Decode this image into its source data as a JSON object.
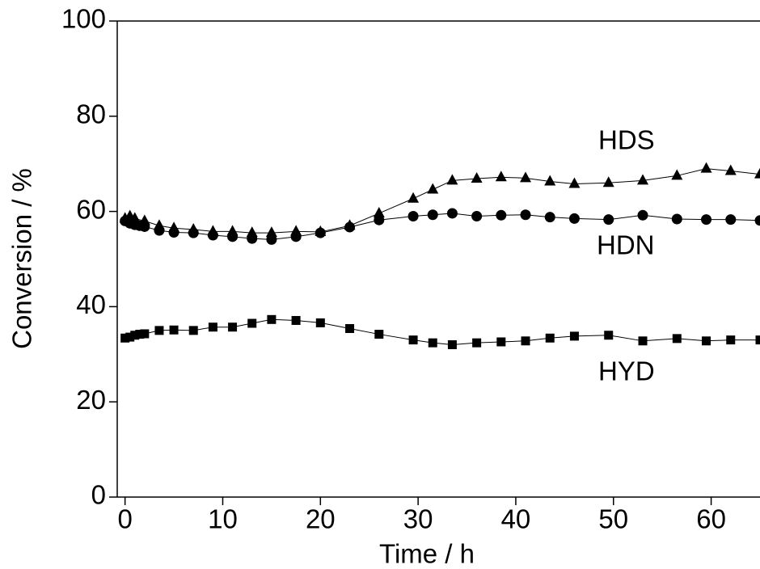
{
  "chart_data": {
    "type": "line",
    "x_label": "Time / h",
    "y_label": "Conversion / %",
    "xlim": [
      -0.8,
      65
    ],
    "xticks": [
      0,
      10,
      20,
      30,
      40,
      50,
      60
    ],
    "ylim": [
      0,
      100
    ],
    "yticks": [
      0,
      20,
      40,
      60,
      80,
      100
    ],
    "series": [
      {
        "name": "HDS",
        "color": "#000000",
        "marker": "triangle",
        "x": [
          0,
          0.5,
          1,
          2,
          3.5,
          5,
          7,
          9,
          11,
          13,
          15,
          17.5,
          20,
          23,
          26,
          29.5,
          31.5,
          33.5,
          36,
          38.5,
          41,
          43.5,
          46,
          49.5,
          53,
          56.5,
          59.5,
          62,
          65
        ],
        "values": [
          58.5,
          59,
          58.5,
          58,
          57,
          56.5,
          56.2,
          55.8,
          55.8,
          55.5,
          55.5,
          55.8,
          55.7,
          57,
          59.6,
          62.7,
          64.6,
          66.5,
          66.9,
          67.2,
          67,
          66.3,
          65.8,
          66,
          66.5,
          67.5,
          69,
          68.5,
          67.8
        ]
      },
      {
        "name": "HDN",
        "color": "#000000",
        "marker": "circle",
        "x": [
          0,
          0.5,
          1,
          1.5,
          2,
          3.5,
          5,
          7,
          9,
          11,
          13,
          15,
          17.5,
          20,
          23,
          26,
          29.5,
          31.5,
          33.5,
          36,
          38.5,
          41,
          43.5,
          46,
          49.5,
          53,
          56.5,
          59.5,
          62,
          65
        ],
        "values": [
          58,
          57.5,
          57.2,
          57,
          56.8,
          56,
          55.6,
          55.5,
          55,
          54.7,
          54.3,
          54.1,
          54.7,
          55.5,
          56.7,
          58.2,
          59,
          59.3,
          59.6,
          59,
          59.2,
          59.3,
          58.8,
          58.5,
          58.3,
          59.2,
          58.4,
          58.3,
          58.3,
          58.1
        ]
      },
      {
        "name": "HYD",
        "color": "#000000",
        "marker": "square",
        "x": [
          0,
          0.5,
          1,
          1.5,
          2,
          3.5,
          5,
          7,
          9,
          11,
          13,
          15,
          17.5,
          20,
          23,
          26,
          29.5,
          31.5,
          33.5,
          36,
          38.5,
          41,
          43.5,
          46,
          49.5,
          53,
          56.5,
          59.5,
          62,
          65
        ],
        "values": [
          33.4,
          33.6,
          34,
          34.2,
          34.3,
          35,
          35.1,
          35,
          35.7,
          35.7,
          36.5,
          37.3,
          37.1,
          36.6,
          35.4,
          34.2,
          33,
          32.4,
          32,
          32.4,
          32.6,
          32.8,
          33.4,
          33.8,
          34,
          32.8,
          33.3,
          32.8,
          33,
          33
        ]
      }
    ]
  }
}
